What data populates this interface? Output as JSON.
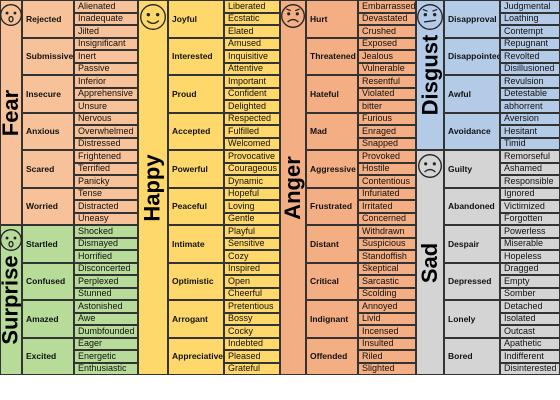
{
  "chart_data": {
    "type": "table",
    "groups": [
      {
        "emotion": "Fear",
        "color": "#f7c29a",
        "face": "scared",
        "secondary": [
          {
            "name": "Rejected",
            "words": [
              "Alienated",
              "Inadequate",
              "Jilted"
            ]
          },
          {
            "name": "Submissive",
            "words": [
              "Insignificant",
              "Inert",
              "Passive"
            ]
          },
          {
            "name": "Insecure",
            "words": [
              "Inferior",
              "Apprehensive",
              "Unsure"
            ]
          },
          {
            "name": "Anxious",
            "words": [
              "Nervous",
              "Overwhelmed",
              "Distressed"
            ]
          },
          {
            "name": "Scared",
            "words": [
              "Frightened",
              "Terrified",
              "Panicky"
            ]
          },
          {
            "name": "Worried",
            "words": [
              "Tense",
              "Distracted",
              "Uneasy"
            ]
          }
        ]
      },
      {
        "emotion": "Surprise",
        "color": "#b7dc9a",
        "face": "surprised",
        "secondary": [
          {
            "name": "Startled",
            "words": [
              "Shocked",
              "Dismayed",
              "Horrified"
            ]
          },
          {
            "name": "Confused",
            "words": [
              "Disconcerted",
              "Perplexed",
              "Stunned"
            ]
          },
          {
            "name": "Amazed",
            "words": [
              "Astonished",
              "Awe",
              "Dumbfounded"
            ]
          },
          {
            "name": "Excited",
            "words": [
              "Eager",
              "Energetic",
              "Enthusiastic"
            ]
          }
        ]
      },
      {
        "emotion": "Happy",
        "color": "#fed86a",
        "face": "happy",
        "secondary": [
          {
            "name": "Joyful",
            "words": [
              "Liberated",
              "Ecstatic",
              "Elated"
            ]
          },
          {
            "name": "Interested",
            "words": [
              "Amused",
              "Inquisitive",
              "Attentive"
            ]
          },
          {
            "name": "Proud",
            "words": [
              "Important",
              "Confident",
              "Delighted"
            ]
          },
          {
            "name": "Accepted",
            "words": [
              "Respected",
              "Fulfilled",
              "Welcomed"
            ]
          },
          {
            "name": "Powerful",
            "words": [
              "Provocative",
              "Courageous",
              "Dynamic"
            ]
          },
          {
            "name": "Peaceful",
            "words": [
              "Hopeful",
              "Loving",
              "Gentle"
            ]
          },
          {
            "name": "Intimate",
            "words": [
              "Playful",
              "Sensitive",
              "Cozy"
            ]
          },
          {
            "name": "Optimistic",
            "words": [
              "Inspired",
              "Open",
              "Cheerful"
            ]
          },
          {
            "name": "Arrogant",
            "words": [
              "Pretentious",
              "Bossy",
              "Cocky"
            ]
          },
          {
            "name": "Appreciative",
            "words": [
              "Indebted",
              "Pleased",
              "Grateful"
            ]
          }
        ]
      },
      {
        "emotion": "Anger",
        "color": "#f4ae84",
        "face": "angry",
        "secondary": [
          {
            "name": "Hurt",
            "words": [
              "Embarrassed",
              "Devastated",
              "Crushed"
            ]
          },
          {
            "name": "Threatened",
            "words": [
              "Exposed",
              "Jealous",
              "Vulnerable"
            ]
          },
          {
            "name": "Hateful",
            "words": [
              "Resentful",
              "Violated",
              "bitter"
            ]
          },
          {
            "name": "Mad",
            "words": [
              "Furious",
              "Enraged",
              "Snapped"
            ]
          },
          {
            "name": "Aggressive",
            "words": [
              "Provoked",
              "Hostile",
              "Contentious"
            ]
          },
          {
            "name": "Frustrated",
            "words": [
              "Infuriated",
              "Irritated",
              "Concerned"
            ]
          },
          {
            "name": "Distant",
            "words": [
              "Withdrawn",
              "Suspicious",
              "Standoffish"
            ]
          },
          {
            "name": "Critical",
            "words": [
              "Skeptical",
              "Sarcastic",
              "Scolding"
            ]
          },
          {
            "name": "Indignant",
            "words": [
              "Annoyed",
              "Livid",
              "Incensed"
            ]
          },
          {
            "name": "Offended",
            "words": [
              "Insulted",
              "Riled",
              "Slighted"
            ]
          }
        ]
      },
      {
        "emotion": "Disgust",
        "color": "#b4cbe8",
        "face": "disgusted",
        "secondary": [
          {
            "name": "Disapproval",
            "words": [
              "Judgmental",
              "Loathing",
              "Contempt"
            ]
          },
          {
            "name": "Disappointed",
            "words": [
              "Repugnant",
              "Revolted",
              "Disillusioned"
            ]
          },
          {
            "name": "Awful",
            "words": [
              "Revulsion",
              "Detestable",
              "abhorrent"
            ]
          },
          {
            "name": "Avoidance",
            "words": [
              "Aversion",
              "Hesitant",
              "Timid"
            ]
          }
        ]
      },
      {
        "emotion": "Sad",
        "color": "#d4d4d4",
        "face": "sad",
        "secondary": [
          {
            "name": "Guilty",
            "words": [
              "Remorseful",
              "Ashamed",
              "Responsible"
            ]
          },
          {
            "name": "Abandoned",
            "words": [
              "Ignored",
              "Victimized",
              "Forgotten"
            ]
          },
          {
            "name": "Despair",
            "words": [
              "Powerless",
              "Miserable",
              "Hopeless"
            ]
          },
          {
            "name": "Depressed",
            "words": [
              "Dragged",
              "Empty",
              "Somber"
            ]
          },
          {
            "name": "Lonely",
            "words": [
              "Detached",
              "Isolated",
              "Outcast"
            ]
          },
          {
            "name": "Bored",
            "words": [
              "Apathetic",
              "Indifferent",
              "Disinterested"
            ]
          }
        ]
      }
    ]
  }
}
